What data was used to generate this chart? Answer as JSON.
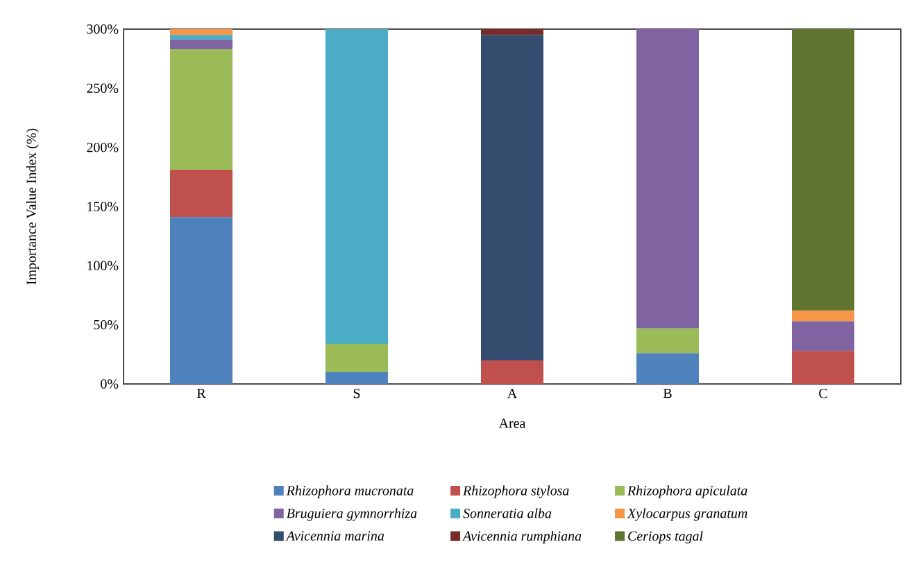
{
  "chart_data": {
    "type": "bar",
    "stacked": true,
    "xlabel": "Area",
    "ylabel": "Importance Value Index (%)",
    "categories": [
      "R",
      "S",
      "A",
      "B",
      "C"
    ],
    "ylim": [
      0,
      300
    ],
    "yticks": [
      {
        "value": 0,
        "label": "0%"
      },
      {
        "value": 50,
        "label": "50%"
      },
      {
        "value": 100,
        "label": "100%"
      },
      {
        "value": 150,
        "label": "150%"
      },
      {
        "value": 200,
        "label": "200%"
      },
      {
        "value": 250,
        "label": "250%"
      },
      {
        "value": 300,
        "label": "300%"
      }
    ],
    "grid": false,
    "legend": "bottom",
    "series": [
      {
        "name": "Rhizophora mucronata",
        "color": "#4f81bd",
        "values": [
          141,
          10,
          0,
          26,
          0
        ]
      },
      {
        "name": "Rhizophora stylosa",
        "color": "#c0504d",
        "values": [
          40,
          0,
          20,
          0,
          28
        ]
      },
      {
        "name": "Rhizophora apiculata",
        "color": "#9bbb59",
        "values": [
          102,
          24,
          0,
          21,
          0
        ]
      },
      {
        "name": "Bruguiera gymnorrhiza",
        "color": "#8064a2",
        "values": [
          8,
          0,
          0,
          253,
          25
        ]
      },
      {
        "name": "Sonneratia alba",
        "color": "#4bacc6",
        "values": [
          4,
          266,
          0,
          0,
          0
        ]
      },
      {
        "name": "Xylocarpus granatum",
        "color": "#f79646",
        "values": [
          5,
          0,
          0,
          0,
          9
        ]
      },
      {
        "name": "Avicennia marina",
        "color": "#344c6e",
        "values": [
          0,
          0,
          275,
          0,
          0
        ]
      },
      {
        "name": "Avicennia rumphiana",
        "color": "#772c2a",
        "values": [
          0,
          0,
          5,
          0,
          0
        ]
      },
      {
        "name": "Ceriops tagal",
        "color": "#5f7530",
        "values": [
          0,
          0,
          0,
          0,
          238
        ]
      }
    ]
  }
}
